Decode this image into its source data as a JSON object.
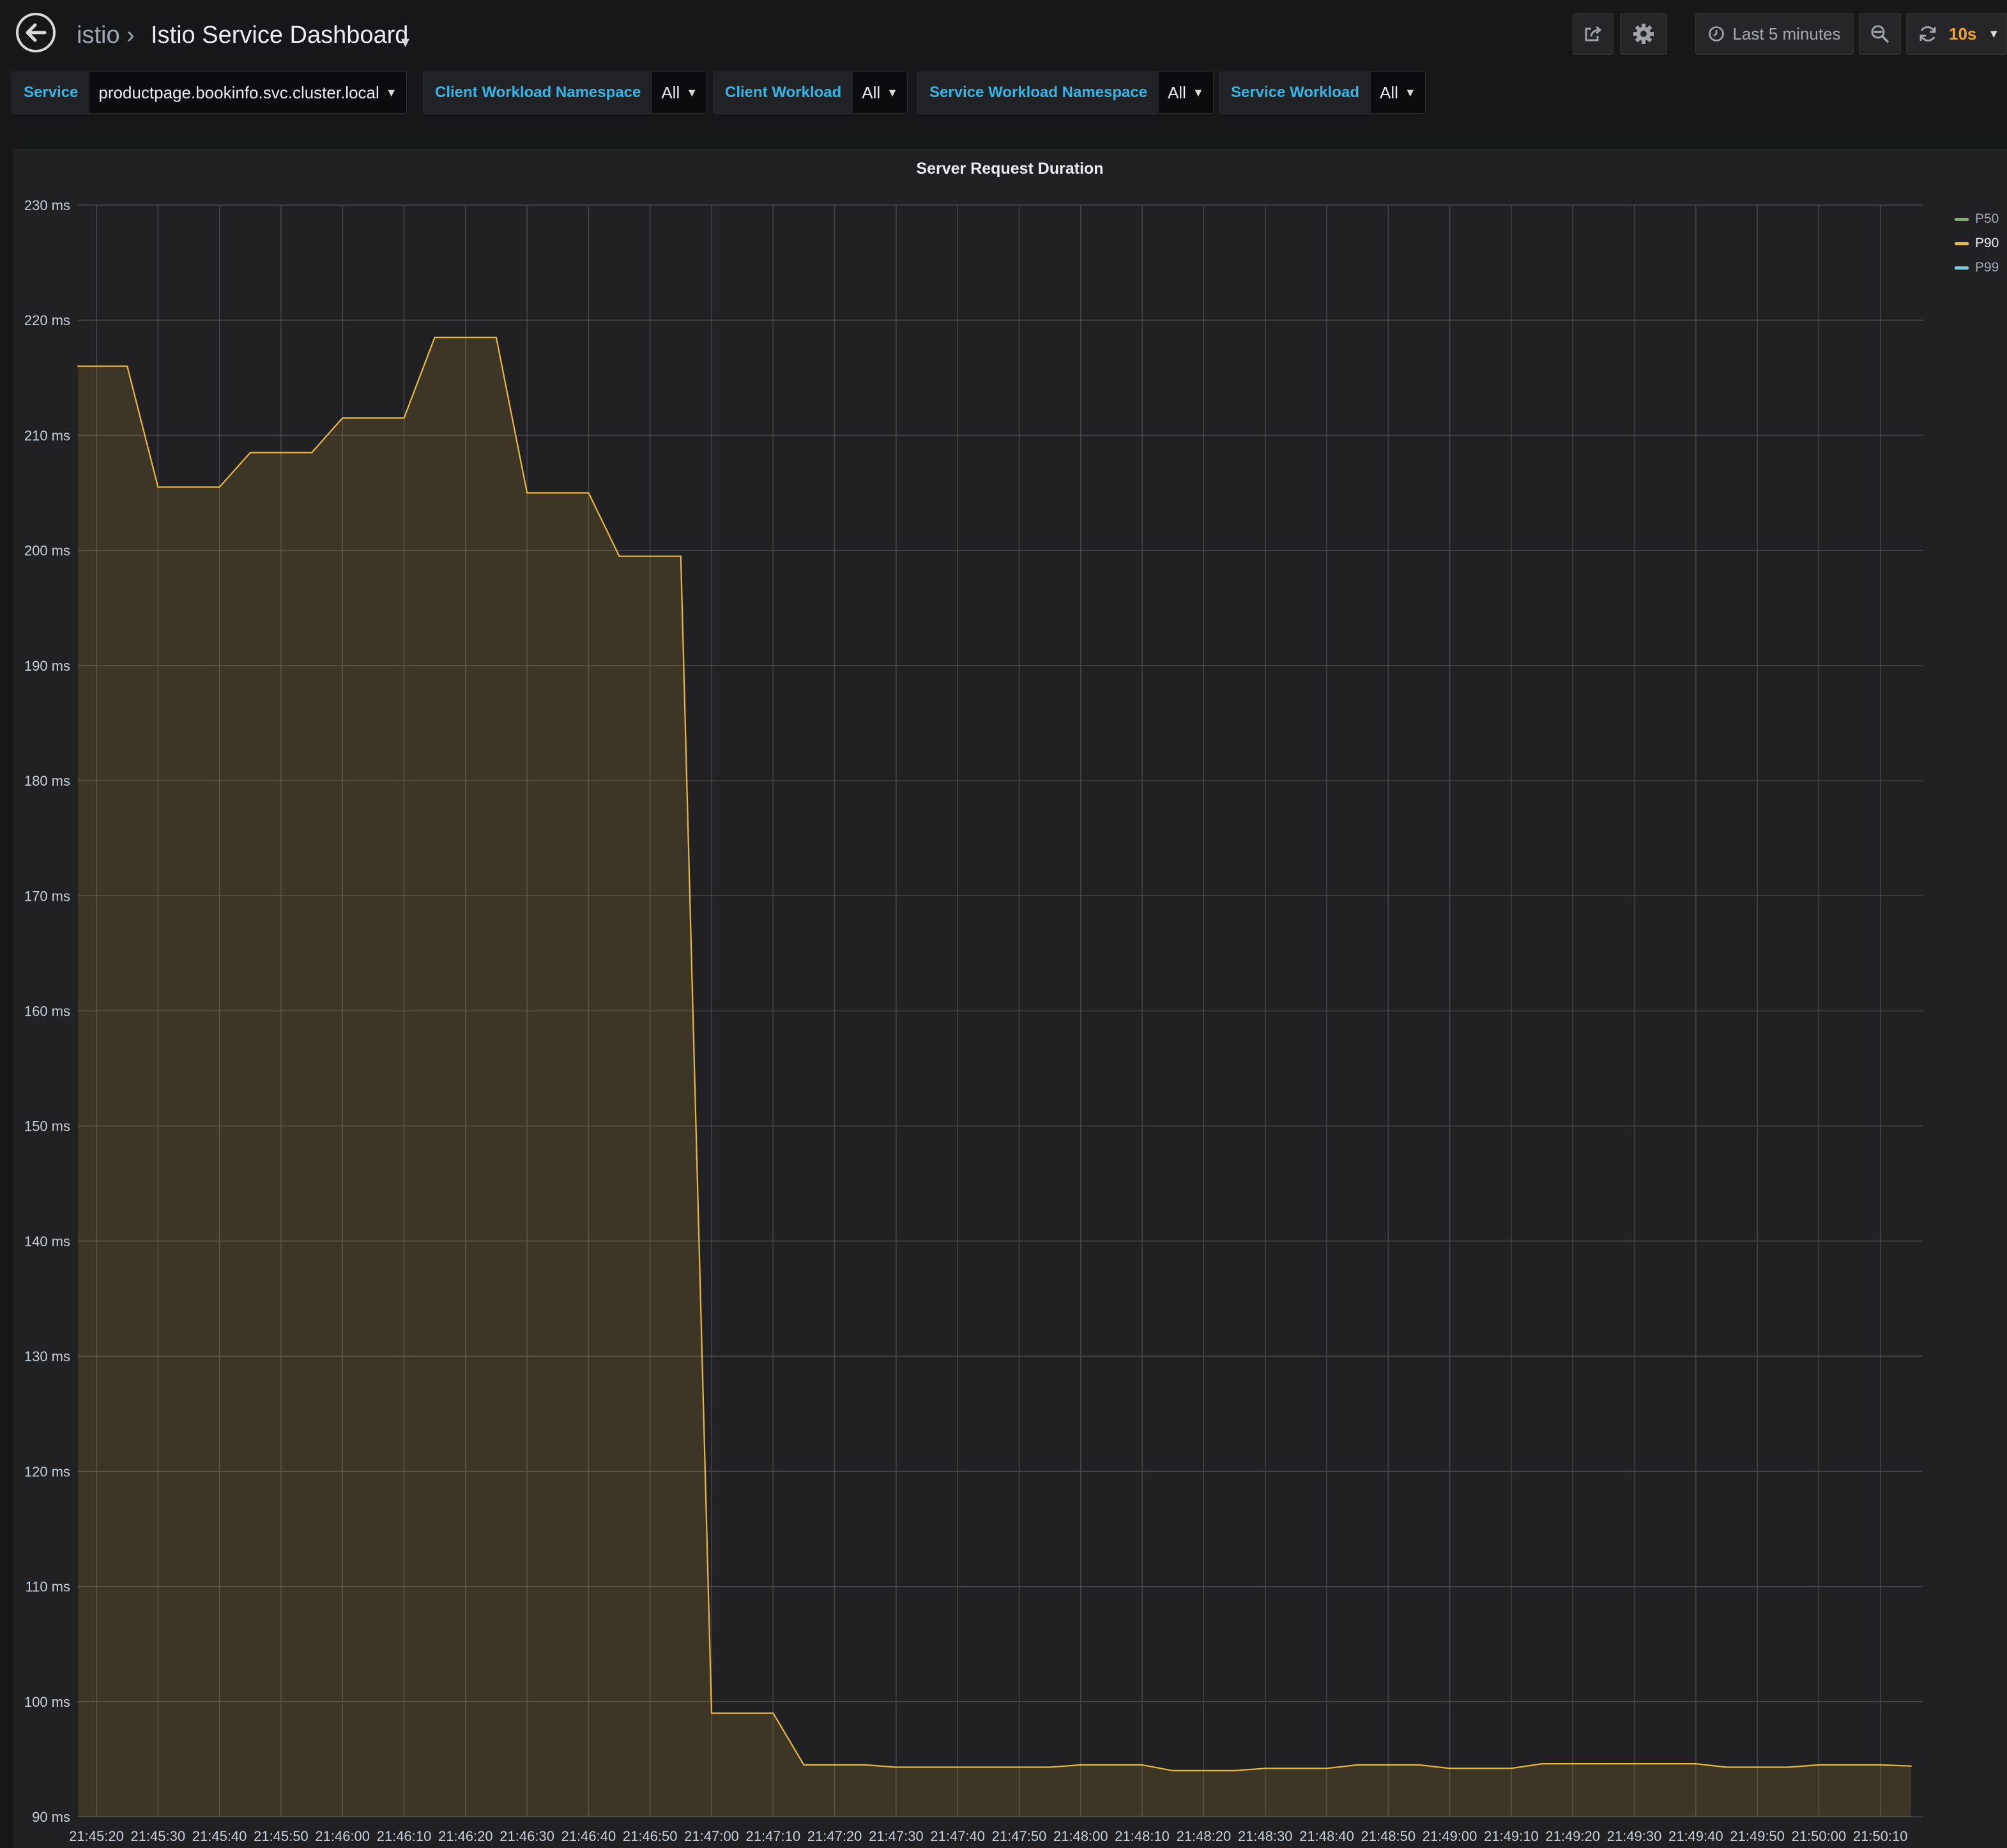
{
  "navbar": {
    "folder": "istio",
    "separator": "›",
    "title": "Istio Service Dashboard",
    "time_range": "Last 5 minutes",
    "refresh_interval": "10s"
  },
  "variables": [
    {
      "label": "Service",
      "value": "productpage.bookinfo.svc.cluster.local"
    },
    {
      "label": "Client Workload Namespace",
      "value": "All"
    },
    {
      "label": "Client Workload",
      "value": "All"
    },
    {
      "label": "Service Workload Namespace",
      "value": "All"
    },
    {
      "label": "Service Workload",
      "value": "All"
    }
  ],
  "chart_data": {
    "type": "area",
    "title": "Server Request Duration",
    "ylim": [
      90,
      230
    ],
    "y_ticks": [
      230,
      220,
      210,
      200,
      190,
      180,
      170,
      160,
      150,
      140,
      130,
      120,
      110,
      100,
      90
    ],
    "y_unit": " ms",
    "x_ticks": [
      "21:45:20",
      "21:45:30",
      "21:45:40",
      "21:45:50",
      "21:46:00",
      "21:46:10",
      "21:46:20",
      "21:46:30",
      "21:46:40",
      "21:46:50",
      "21:47:00",
      "21:47:10",
      "21:47:20",
      "21:47:30",
      "21:47:40",
      "21:47:50",
      "21:48:00",
      "21:48:10",
      "21:48:20",
      "21:48:30",
      "21:48:40",
      "21:48:50",
      "21:49:00",
      "21:49:10",
      "21:49:20",
      "21:49:30",
      "21:49:40",
      "21:49:50",
      "21:50:00",
      "21:50:10"
    ],
    "grid": true,
    "legend_position": "right",
    "series": [
      {
        "name": "P50",
        "color": "#7eb26d",
        "points": []
      },
      {
        "name": "P90",
        "color": "#eab839",
        "points": [
          [
            "21:45:17",
            216
          ],
          [
            "21:45:25",
            216
          ],
          [
            "21:45:30",
            205.5
          ],
          [
            "21:45:40",
            205.5
          ],
          [
            "21:45:45",
            208.5
          ],
          [
            "21:45:55",
            208.5
          ],
          [
            "21:46:00",
            211.5
          ],
          [
            "21:46:10",
            211.5
          ],
          [
            "21:46:15",
            218.5
          ],
          [
            "21:46:25",
            218.5
          ],
          [
            "21:46:30",
            205
          ],
          [
            "21:46:40",
            205
          ],
          [
            "21:46:45",
            199.5
          ],
          [
            "21:46:55",
            199.5
          ],
          [
            "21:47:00",
            99
          ],
          [
            "21:47:10",
            99
          ],
          [
            "21:47:15",
            94.5
          ],
          [
            "21:47:25",
            94.5
          ],
          [
            "21:47:30",
            94.3
          ],
          [
            "21:47:40",
            94.3
          ],
          [
            "21:47:45",
            94.3
          ],
          [
            "21:47:55",
            94.3
          ],
          [
            "21:48:00",
            94.5
          ],
          [
            "21:48:10",
            94.5
          ],
          [
            "21:48:15",
            94
          ],
          [
            "21:48:25",
            94
          ],
          [
            "21:48:30",
            94.2
          ],
          [
            "21:48:40",
            94.2
          ],
          [
            "21:48:45",
            94.5
          ],
          [
            "21:48:55",
            94.5
          ],
          [
            "21:49:00",
            94.2
          ],
          [
            "21:49:10",
            94.2
          ],
          [
            "21:49:15",
            94.6
          ],
          [
            "21:49:25",
            94.6
          ],
          [
            "21:49:30",
            94.6
          ],
          [
            "21:49:40",
            94.6
          ],
          [
            "21:49:45",
            94.3
          ],
          [
            "21:49:55",
            94.3
          ],
          [
            "21:50:00",
            94.5
          ],
          [
            "21:50:10",
            94.5
          ],
          [
            "21:50:15",
            94.4
          ]
        ]
      },
      {
        "name": "P99",
        "color": "#6ed0e0",
        "points": []
      }
    ]
  }
}
